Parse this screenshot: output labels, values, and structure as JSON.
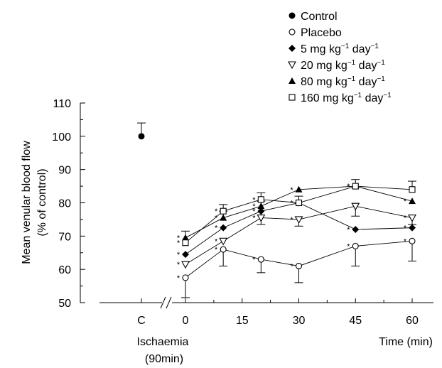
{
  "chart_data": {
    "type": "line",
    "ylabel_line1": "Mean venular blood flow",
    "ylabel_line2": "(% of control)",
    "xlabel": "Time (min)",
    "x_sublabel_line1": "Ischaemia",
    "x_sublabel_line2": "(90min)",
    "ylim": [
      50,
      110
    ],
    "y_ticks": [
      50,
      60,
      70,
      80,
      90,
      100,
      110
    ],
    "x_ticks": [
      "C",
      "0",
      "15",
      "30",
      "45",
      "60"
    ],
    "control": {
      "name": "Control",
      "x": "C",
      "y": 100,
      "err": 4,
      "marker": "filled-circle"
    },
    "x": [
      0,
      10,
      20,
      30,
      45,
      60
    ],
    "series": [
      {
        "name": "Placebo",
        "marker": "open-circle",
        "values": [
          57.5,
          66,
          63,
          61,
          67,
          68.5
        ],
        "errors": [
          6,
          5,
          4,
          5,
          6,
          6
        ],
        "err_dir": [
          -1,
          -1,
          -1,
          -1,
          -1,
          -1
        ],
        "stars": [
          true,
          true,
          true,
          true,
          true,
          true
        ]
      },
      {
        "name": "5 mg kg⁻¹ day⁻¹",
        "marker": "filled-diamond",
        "values": [
          64.5,
          72.5,
          77.5,
          80,
          72,
          72.5
        ],
        "errors": [
          0,
          0,
          0,
          0,
          0,
          0
        ],
        "err_dir": [
          1,
          1,
          1,
          1,
          1,
          1
        ],
        "stars": [
          true,
          true,
          true,
          true,
          true,
          true
        ]
      },
      {
        "name": "20 mg kg⁻¹ day⁻¹",
        "marker": "open-triangle-down",
        "values": [
          61.5,
          68.5,
          75.5,
          75,
          79,
          75.5
        ],
        "errors": [
          0,
          0,
          2,
          2,
          3,
          2
        ],
        "err_dir": [
          1,
          1,
          -1,
          -1,
          -1,
          -1
        ],
        "stars": [
          true,
          true,
          true,
          true,
          false,
          true
        ]
      },
      {
        "name": "80 mg kg⁻¹ day⁻¹",
        "marker": "filled-triangle-up",
        "values": [
          69.5,
          75.5,
          79,
          84,
          85,
          80.5
        ],
        "errors": [
          2,
          2,
          1.5,
          0,
          2,
          0
        ],
        "err_dir": [
          1,
          1,
          1,
          1,
          1,
          1
        ],
        "stars": [
          true,
          true,
          true,
          true,
          true,
          true
        ]
      },
      {
        "name": "160 mg kg⁻¹ day⁻¹",
        "marker": "open-square",
        "values": [
          68,
          77.5,
          81,
          80,
          85,
          84
        ],
        "errors": [
          0,
          2,
          2,
          2,
          0,
          2.5
        ],
        "err_dir": [
          1,
          1,
          1,
          1,
          1,
          1
        ],
        "stars": [
          true,
          true,
          true,
          false,
          true,
          false
        ]
      }
    ],
    "legend_placement": "top-right",
    "grid": false
  }
}
